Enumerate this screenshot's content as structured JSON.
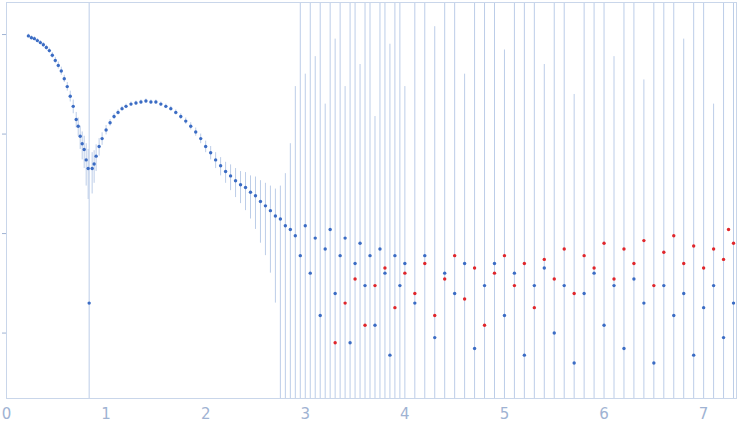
{
  "chart_data": {
    "type": "scatter",
    "log": "y",
    "grid": false,
    "tick_labels": "x",
    "marker": "dot",
    "xlim": [
      0,
      7.33
    ],
    "xticks": [
      0,
      1,
      2,
      3,
      4,
      5,
      6,
      7
    ],
    "ylim": [
      0.00022,
      2.1
    ],
    "yticks": [
      0.001,
      0.01,
      0.1,
      1
    ],
    "series": [
      {
        "color": "#3b6cc4",
        "error_color": "#bccde8",
        "points": [
          {
            "x": 0.22,
            "y": 0.97,
            "lower": 0.93,
            "upper": 1.01
          },
          {
            "x": 0.25,
            "y": 0.93,
            "lower": 0.89,
            "upper": 0.97
          },
          {
            "x": 0.28,
            "y": 0.91,
            "lower": 0.87,
            "upper": 0.95
          },
          {
            "x": 0.31,
            "y": 0.87,
            "lower": 0.83,
            "upper": 0.91
          },
          {
            "x": 0.34,
            "y": 0.83,
            "lower": 0.79,
            "upper": 0.87
          },
          {
            "x": 0.37,
            "y": 0.79,
            "lower": 0.75,
            "upper": 0.83
          },
          {
            "x": 0.4,
            "y": 0.74,
            "lower": 0.7,
            "upper": 0.78
          },
          {
            "x": 0.43,
            "y": 0.69,
            "lower": 0.65,
            "upper": 0.73
          },
          {
            "x": 0.46,
            "y": 0.62,
            "lower": 0.58,
            "upper": 0.66
          },
          {
            "x": 0.49,
            "y": 0.55,
            "lower": 0.51,
            "upper": 0.59
          },
          {
            "x": 0.52,
            "y": 0.49,
            "lower": 0.45,
            "upper": 0.53
          },
          {
            "x": 0.55,
            "y": 0.43,
            "lower": 0.39,
            "upper": 0.47
          },
          {
            "x": 0.58,
            "y": 0.36,
            "lower": 0.33,
            "upper": 0.39
          },
          {
            "x": 0.61,
            "y": 0.3,
            "lower": 0.27,
            "upper": 0.33
          },
          {
            "x": 0.64,
            "y": 0.24,
            "lower": 0.21,
            "upper": 0.27
          },
          {
            "x": 0.67,
            "y": 0.19,
            "lower": 0.16,
            "upper": 0.22
          },
          {
            "x": 0.7,
            "y": 0.14,
            "lower": 0.115,
            "upper": 0.165
          },
          {
            "x": 0.72,
            "y": 0.12,
            "lower": 0.095,
            "upper": 0.145
          },
          {
            "x": 0.74,
            "y": 0.095,
            "lower": 0.07,
            "upper": 0.12
          },
          {
            "x": 0.76,
            "y": 0.08,
            "lower": 0.055,
            "upper": 0.105
          },
          {
            "x": 0.78,
            "y": 0.07,
            "lower": 0.045,
            "upper": 0.095
          },
          {
            "x": 0.8,
            "y": 0.055,
            "lower": 0.03,
            "upper": 0.08
          },
          {
            "x": 0.82,
            "y": 0.045,
            "lower": 0.022,
            "upper": 0.07
          },
          {
            "x": 0.83,
            "y": 0.002,
            "lower": 0.0001,
            "upper": 2.5
          },
          {
            "x": 0.86,
            "y": 0.045,
            "lower": 0.025,
            "upper": 0.065
          },
          {
            "x": 0.88,
            "y": 0.05,
            "lower": 0.032,
            "upper": 0.068
          },
          {
            "x": 0.9,
            "y": 0.06,
            "lower": 0.042,
            "upper": 0.078
          },
          {
            "x": 0.93,
            "y": 0.075,
            "lower": 0.06,
            "upper": 0.09
          },
          {
            "x": 0.96,
            "y": 0.09,
            "lower": 0.077,
            "upper": 0.103
          },
          {
            "x": 1.0,
            "y": 0.11,
            "lower": 0.098,
            "upper": 0.122
          },
          {
            "x": 1.04,
            "y": 0.13,
            "lower": 0.12,
            "upper": 0.14
          },
          {
            "x": 1.08,
            "y": 0.15,
            "lower": 0.14,
            "upper": 0.16
          },
          {
            "x": 1.12,
            "y": 0.165,
            "lower": 0.155,
            "upper": 0.175
          },
          {
            "x": 1.16,
            "y": 0.18,
            "lower": 0.17,
            "upper": 0.19
          },
          {
            "x": 1.2,
            "y": 0.19,
            "lower": 0.18,
            "upper": 0.2
          },
          {
            "x": 1.25,
            "y": 0.2,
            "lower": 0.19,
            "upper": 0.21
          },
          {
            "x": 1.3,
            "y": 0.205,
            "lower": 0.195,
            "upper": 0.215
          },
          {
            "x": 1.35,
            "y": 0.21,
            "lower": 0.2,
            "upper": 0.22
          },
          {
            "x": 1.4,
            "y": 0.215,
            "lower": 0.205,
            "upper": 0.225
          },
          {
            "x": 1.45,
            "y": 0.21,
            "lower": 0.2,
            "upper": 0.22
          },
          {
            "x": 1.5,
            "y": 0.21,
            "lower": 0.2,
            "upper": 0.22
          },
          {
            "x": 1.55,
            "y": 0.2,
            "lower": 0.19,
            "upper": 0.21
          },
          {
            "x": 1.6,
            "y": 0.19,
            "lower": 0.18,
            "upper": 0.2
          },
          {
            "x": 1.65,
            "y": 0.18,
            "lower": 0.17,
            "upper": 0.19
          },
          {
            "x": 1.7,
            "y": 0.165,
            "lower": 0.155,
            "upper": 0.175
          },
          {
            "x": 1.75,
            "y": 0.15,
            "lower": 0.14,
            "upper": 0.16
          },
          {
            "x": 1.8,
            "y": 0.135,
            "lower": 0.125,
            "upper": 0.145
          },
          {
            "x": 1.85,
            "y": 0.12,
            "lower": 0.11,
            "upper": 0.13
          },
          {
            "x": 1.9,
            "y": 0.105,
            "lower": 0.095,
            "upper": 0.115
          },
          {
            "x": 1.95,
            "y": 0.09,
            "lower": 0.08,
            "upper": 0.1
          },
          {
            "x": 2.0,
            "y": 0.075,
            "lower": 0.065,
            "upper": 0.085
          },
          {
            "x": 2.05,
            "y": 0.065,
            "lower": 0.055,
            "upper": 0.075
          },
          {
            "x": 2.1,
            "y": 0.055,
            "lower": 0.045,
            "upper": 0.065
          },
          {
            "x": 2.15,
            "y": 0.048,
            "lower": 0.038,
            "upper": 0.058
          },
          {
            "x": 2.2,
            "y": 0.042,
            "lower": 0.032,
            "upper": 0.052
          },
          {
            "x": 2.25,
            "y": 0.038,
            "lower": 0.027,
            "upper": 0.049
          },
          {
            "x": 2.3,
            "y": 0.034,
            "lower": 0.023,
            "upper": 0.045
          },
          {
            "x": 2.35,
            "y": 0.031,
            "lower": 0.02,
            "upper": 0.042
          },
          {
            "x": 2.4,
            "y": 0.029,
            "lower": 0.017,
            "upper": 0.041
          },
          {
            "x": 2.45,
            "y": 0.026,
            "lower": 0.014,
            "upper": 0.038
          },
          {
            "x": 2.5,
            "y": 0.024,
            "lower": 0.011,
            "upper": 0.037
          },
          {
            "x": 2.55,
            "y": 0.021,
            "lower": 0.008,
            "upper": 0.034
          },
          {
            "x": 2.6,
            "y": 0.019,
            "lower": 0.006,
            "upper": 0.032
          },
          {
            "x": 2.65,
            "y": 0.017,
            "lower": 0.004,
            "upper": 0.03
          },
          {
            "x": 2.7,
            "y": 0.015,
            "lower": 0.002,
            "upper": 0.028
          },
          {
            "x": 2.75,
            "y": 0.014,
            "lower": 0.0001,
            "upper": 0.03
          },
          {
            "x": 2.8,
            "y": 0.012,
            "lower": 0.0001,
            "upper": 0.04
          },
          {
            "x": 2.85,
            "y": 0.011,
            "lower": 0.0001,
            "upper": 0.08
          },
          {
            "x": 2.9,
            "y": 0.0095,
            "lower": 0.0001,
            "upper": 0.3
          },
          {
            "x": 2.95,
            "y": 0.006,
            "lower": 0.0001,
            "upper": 2.5
          },
          {
            "x": 3.0,
            "y": 0.012,
            "lower": 0.0001,
            "upper": 0.4
          },
          {
            "x": 3.05,
            "y": 0.004,
            "lower": 0.0001,
            "upper": 2.5
          },
          {
            "x": 3.1,
            "y": 0.009,
            "lower": 0.0001,
            "upper": 0.6
          },
          {
            "x": 3.15,
            "y": 0.0015,
            "lower": 0.0001,
            "upper": 2.5
          },
          {
            "x": 3.2,
            "y": 0.007,
            "lower": 0.0001,
            "upper": 0.2
          },
          {
            "x": 3.25,
            "y": 0.011,
            "lower": 0.0001,
            "upper": 2.5
          },
          {
            "x": 3.3,
            "y": 0.0025,
            "lower": 0.0001,
            "upper": 0.9
          },
          {
            "x": 3.35,
            "y": 0.006,
            "lower": 0.0001,
            "upper": 2.5
          },
          {
            "x": 3.4,
            "y": 0.009,
            "lower": 0.0001,
            "upper": 0.3
          },
          {
            "x": 3.45,
            "y": 0.0008,
            "lower": 0.0001,
            "upper": 2.5
          },
          {
            "x": 3.5,
            "y": 0.005,
            "lower": 0.0001,
            "upper": 2.5
          },
          {
            "x": 3.55,
            "y": 0.008,
            "lower": 0.0001,
            "upper": 0.5
          },
          {
            "x": 3.6,
            "y": 0.003,
            "lower": 0.0001,
            "upper": 2.5
          },
          {
            "x": 3.65,
            "y": 0.006,
            "lower": 0.0001,
            "upper": 2.5
          },
          {
            "x": 3.7,
            "y": 0.0012,
            "lower": 0.0001,
            "upper": 0.15
          },
          {
            "x": 3.75,
            "y": 0.007,
            "lower": 0.0001,
            "upper": 2.5
          },
          {
            "x": 3.8,
            "y": 0.004,
            "lower": 0.0001,
            "upper": 2.5
          },
          {
            "x": 3.85,
            "y": 0.0006,
            "lower": 0.0001,
            "upper": 0.8
          },
          {
            "x": 3.9,
            "y": 0.006,
            "lower": 0.0001,
            "upper": 2.5
          },
          {
            "x": 3.95,
            "y": 0.003,
            "lower": 0.0001,
            "upper": 2.5
          },
          {
            "x": 4.0,
            "y": 0.005,
            "lower": 0.0001,
            "upper": 0.3
          },
          {
            "x": 4.1,
            "y": 0.002,
            "lower": 0.0001,
            "upper": 2.5
          },
          {
            "x": 4.2,
            "y": 0.006,
            "lower": 0.0001,
            "upper": 2.5
          },
          {
            "x": 4.3,
            "y": 0.0009,
            "lower": 0.0001,
            "upper": 1.2
          },
          {
            "x": 4.4,
            "y": 0.004,
            "lower": 0.0001,
            "upper": 2.5
          },
          {
            "x": 4.5,
            "y": 0.0025,
            "lower": 0.0001,
            "upper": 2.5
          },
          {
            "x": 4.6,
            "y": 0.005,
            "lower": 0.0001,
            "upper": 0.4
          },
          {
            "x": 4.7,
            "y": 0.0007,
            "lower": 0.0001,
            "upper": 2.5
          },
          {
            "x": 4.8,
            "y": 0.003,
            "lower": 0.0001,
            "upper": 2.5
          },
          {
            "x": 4.9,
            "y": 0.005,
            "lower": 0.0001,
            "upper": 2.5
          },
          {
            "x": 5.0,
            "y": 0.0015,
            "lower": 0.0001,
            "upper": 0.7
          },
          {
            "x": 5.1,
            "y": 0.004,
            "lower": 0.0001,
            "upper": 2.5
          },
          {
            "x": 5.2,
            "y": 0.0006,
            "lower": 0.0001,
            "upper": 2.5
          },
          {
            "x": 5.3,
            "y": 0.003,
            "lower": 0.0001,
            "upper": 2.5
          },
          {
            "x": 5.4,
            "y": 0.0045,
            "lower": 0.0001,
            "upper": 0.5
          },
          {
            "x": 5.5,
            "y": 0.001,
            "lower": 0.0001,
            "upper": 2.5
          },
          {
            "x": 5.6,
            "y": 0.003,
            "lower": 0.0001,
            "upper": 2.5
          },
          {
            "x": 5.7,
            "y": 0.0005,
            "lower": 0.0001,
            "upper": 0.25
          },
          {
            "x": 5.8,
            "y": 0.0025,
            "lower": 0.0001,
            "upper": 2.5
          },
          {
            "x": 5.9,
            "y": 0.004,
            "lower": 0.0001,
            "upper": 2.5
          },
          {
            "x": 6.0,
            "y": 0.0012,
            "lower": 0.0001,
            "upper": 2.5
          },
          {
            "x": 6.1,
            "y": 0.003,
            "lower": 0.0001,
            "upper": 0.6
          },
          {
            "x": 6.2,
            "y": 0.0007,
            "lower": 0.0001,
            "upper": 2.5
          },
          {
            "x": 6.3,
            "y": 0.0035,
            "lower": 0.0001,
            "upper": 2.5
          },
          {
            "x": 6.4,
            "y": 0.002,
            "lower": 0.0001,
            "upper": 0.35
          },
          {
            "x": 6.5,
            "y": 0.0005,
            "lower": 0.0001,
            "upper": 2.5
          },
          {
            "x": 6.6,
            "y": 0.003,
            "lower": 0.0001,
            "upper": 2.5
          },
          {
            "x": 6.7,
            "y": 0.0015,
            "lower": 0.0001,
            "upper": 2.5
          },
          {
            "x": 6.8,
            "y": 0.0025,
            "lower": 0.0001,
            "upper": 0.9
          },
          {
            "x": 6.9,
            "y": 0.0006,
            "lower": 0.0001,
            "upper": 2.5
          },
          {
            "x": 7.0,
            "y": 0.0018,
            "lower": 0.0001,
            "upper": 2.5
          },
          {
            "x": 7.1,
            "y": 0.003,
            "lower": 0.0001,
            "upper": 0.2
          },
          {
            "x": 7.2,
            "y": 0.0009,
            "lower": 0.0001,
            "upper": 2.5
          },
          {
            "x": 7.3,
            "y": 0.002,
            "lower": 0.0001,
            "upper": 2.5
          }
        ]
      },
      {
        "color": "#e0262b",
        "points": [
          {
            "x": 3.3,
            "y": 0.0008
          },
          {
            "x": 3.4,
            "y": 0.002
          },
          {
            "x": 3.5,
            "y": 0.0035
          },
          {
            "x": 3.6,
            "y": 0.0012
          },
          {
            "x": 3.7,
            "y": 0.003
          },
          {
            "x": 3.8,
            "y": 0.0045
          },
          {
            "x": 3.9,
            "y": 0.0018
          },
          {
            "x": 4.0,
            "y": 0.004
          },
          {
            "x": 4.1,
            "y": 0.0025
          },
          {
            "x": 4.2,
            "y": 0.005
          },
          {
            "x": 4.3,
            "y": 0.0015
          },
          {
            "x": 4.4,
            "y": 0.0035
          },
          {
            "x": 4.5,
            "y": 0.006
          },
          {
            "x": 4.6,
            "y": 0.0022
          },
          {
            "x": 4.7,
            "y": 0.0045
          },
          {
            "x": 4.8,
            "y": 0.0012
          },
          {
            "x": 4.9,
            "y": 0.004
          },
          {
            "x": 5.0,
            "y": 0.006
          },
          {
            "x": 5.1,
            "y": 0.003
          },
          {
            "x": 5.2,
            "y": 0.005
          },
          {
            "x": 5.3,
            "y": 0.0018
          },
          {
            "x": 5.4,
            "y": 0.0055
          },
          {
            "x": 5.5,
            "y": 0.0035
          },
          {
            "x": 5.6,
            "y": 0.007
          },
          {
            "x": 5.7,
            "y": 0.0025
          },
          {
            "x": 5.8,
            "y": 0.006
          },
          {
            "x": 5.9,
            "y": 0.0045
          },
          {
            "x": 6.0,
            "y": 0.008
          },
          {
            "x": 6.1,
            "y": 0.0035
          },
          {
            "x": 6.2,
            "y": 0.007
          },
          {
            "x": 6.3,
            "y": 0.005
          },
          {
            "x": 6.4,
            "y": 0.0085
          },
          {
            "x": 6.5,
            "y": 0.003
          },
          {
            "x": 6.6,
            "y": 0.0065
          },
          {
            "x": 6.7,
            "y": 0.0095
          },
          {
            "x": 6.8,
            "y": 0.005
          },
          {
            "x": 6.9,
            "y": 0.0075
          },
          {
            "x": 7.0,
            "y": 0.0045
          },
          {
            "x": 7.1,
            "y": 0.007
          },
          {
            "x": 7.2,
            "y": 0.0055
          },
          {
            "x": 7.25,
            "y": 0.011
          },
          {
            "x": 7.3,
            "y": 0.008
          }
        ]
      }
    ]
  }
}
